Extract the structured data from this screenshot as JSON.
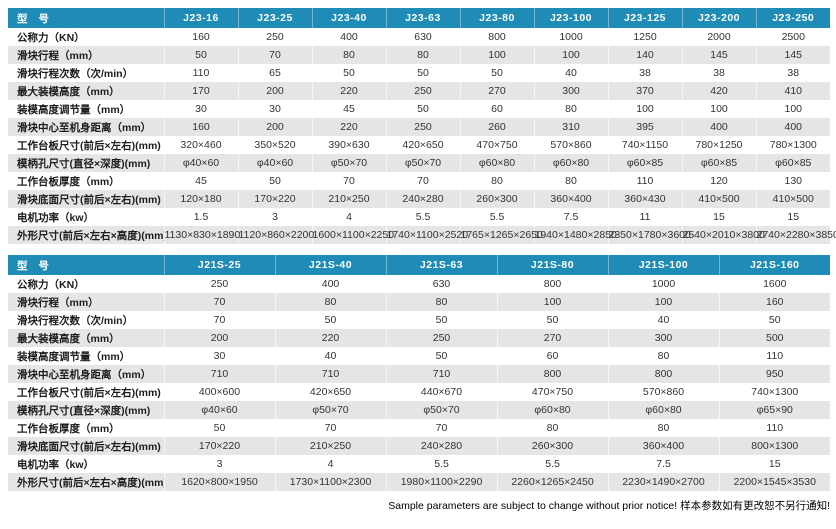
{
  "header_label": "型 号",
  "colors": {
    "header_bg": "#1E8CB7",
    "stripe": "#E5E5E5",
    "header_text": "#FFFFFF"
  },
  "tables": [
    {
      "name": "J23-series-spec-table",
      "models": [
        "J23-16",
        "J23-25",
        "J23-40",
        "J23-63",
        "J23-80",
        "J23-100",
        "J23-125",
        "J23-200",
        "J23-250"
      ],
      "rows": [
        {
          "label": "公称力（KN）",
          "values": [
            "160",
            "250",
            "400",
            "630",
            "800",
            "1000",
            "1250",
            "2000",
            "2500"
          ]
        },
        {
          "label": "滑块行程（mm）",
          "values": [
            "50",
            "70",
            "80",
            "80",
            "100",
            "100",
            "140",
            "145",
            "145"
          ]
        },
        {
          "label": "滑块行程次数（次/min）",
          "values": [
            "110",
            "65",
            "50",
            "50",
            "50",
            "40",
            "38",
            "38",
            "38"
          ]
        },
        {
          "label": "最大装模高度（mm）",
          "values": [
            "170",
            "200",
            "220",
            "250",
            "270",
            "300",
            "370",
            "420",
            "410"
          ]
        },
        {
          "label": "装模高度调节量（mm）",
          "values": [
            "30",
            "30",
            "45",
            "50",
            "60",
            "80",
            "100",
            "100",
            "100"
          ]
        },
        {
          "label": "滑块中心至机身距离（mm）",
          "values": [
            "160",
            "200",
            "220",
            "250",
            "260",
            "310",
            "395",
            "400",
            "400"
          ]
        },
        {
          "label": "工作台板尺寸(前后×左右)(mm)",
          "values": [
            "320×460",
            "350×520",
            "390×630",
            "420×650",
            "470×750",
            "570×860",
            "740×1150",
            "780×1250",
            "780×1300"
          ]
        },
        {
          "label": "模柄孔尺寸(直径×深度)(mm)",
          "values": [
            "φ40×60",
            "φ40×60",
            "φ50×70",
            "φ50×70",
            "φ60×80",
            "φ60×80",
            "φ60×85",
            "φ60×85",
            "φ60×85"
          ]
        },
        {
          "label": "工作台板厚度（mm）",
          "values": [
            "45",
            "50",
            "70",
            "70",
            "80",
            "80",
            "110",
            "120",
            "130"
          ]
        },
        {
          "label": "滑块底面尺寸(前后×左右)(mm)",
          "values": [
            "120×180",
            "170×220",
            "210×250",
            "240×280",
            "260×300",
            "360×400",
            "360×430",
            "410×500",
            "410×500"
          ]
        },
        {
          "label": "电机功率（kw）",
          "values": [
            "1.5",
            "3",
            "4",
            "5.5",
            "5.5",
            "7.5",
            "11",
            "15",
            "15"
          ]
        },
        {
          "label": "外形尺寸(前后×左右×高度)(mm)",
          "values": [
            "1130×830×1890",
            "1120×860×2200",
            "1600×1100×2250",
            "1740×1100×2520",
            "1765×1265×2650",
            "1940×1480×2850",
            "2350×1780×3600",
            "2540×2010×3800",
            "2740×2280×3850"
          ]
        }
      ]
    },
    {
      "name": "J21S-series-spec-table",
      "models": [
        "J21S-25",
        "J21S-40",
        "J21S-63",
        "J21S-80",
        "J21S-100",
        "J21S-160"
      ],
      "rows": [
        {
          "label": "公称力（KN）",
          "values": [
            "250",
            "400",
            "630",
            "800",
            "1000",
            "1600"
          ]
        },
        {
          "label": "滑块行程（mm）",
          "values": [
            "70",
            "80",
            "80",
            "100",
            "100",
            "160"
          ]
        },
        {
          "label": "滑块行程次数（次/min）",
          "values": [
            "70",
            "50",
            "50",
            "50",
            "40",
            "50"
          ]
        },
        {
          "label": "最大装模高度（mm）",
          "values": [
            "200",
            "220",
            "250",
            "270",
            "300",
            "500"
          ]
        },
        {
          "label": "装模高度调节量（mm）",
          "values": [
            "30",
            "40",
            "50",
            "60",
            "80",
            "110"
          ]
        },
        {
          "label": "滑块中心至机身距离（mm）",
          "values": [
            "710",
            "710",
            "710",
            "800",
            "800",
            "950"
          ]
        },
        {
          "label": "工作台板尺寸(前后×左右)(mm)",
          "values": [
            "400×600",
            "420×650",
            "440×670",
            "470×750",
            "570×860",
            "740×1300"
          ]
        },
        {
          "label": "模柄孔尺寸(直径×深度)(mm)",
          "values": [
            "φ40×60",
            "φ50×70",
            "φ50×70",
            "φ60×80",
            "φ60×80",
            "φ65×90"
          ]
        },
        {
          "label": "工作台板厚度（mm）",
          "values": [
            "50",
            "70",
            "70",
            "80",
            "80",
            "110"
          ]
        },
        {
          "label": "滑块底面尺寸(前后×左右)(mm)",
          "values": [
            "170×220",
            "210×250",
            "240×280",
            "260×300",
            "360×400",
            "800×1300"
          ]
        },
        {
          "label": "电机功率（kw）",
          "values": [
            "3",
            "4",
            "5.5",
            "5.5",
            "7.5",
            "15"
          ]
        },
        {
          "label": "外形尺寸(前后×左右×高度)(mm)",
          "values": [
            "1620×800×1950",
            "1730×1100×2300",
            "1980×1100×2290",
            "2260×1265×2450",
            "2230×1490×2700",
            "2200×1545×3530"
          ]
        }
      ]
    }
  ],
  "footer": {
    "note": "Sample parameters are subject to change without prior notice!  样本参数如有更改恕不另行通知!"
  }
}
